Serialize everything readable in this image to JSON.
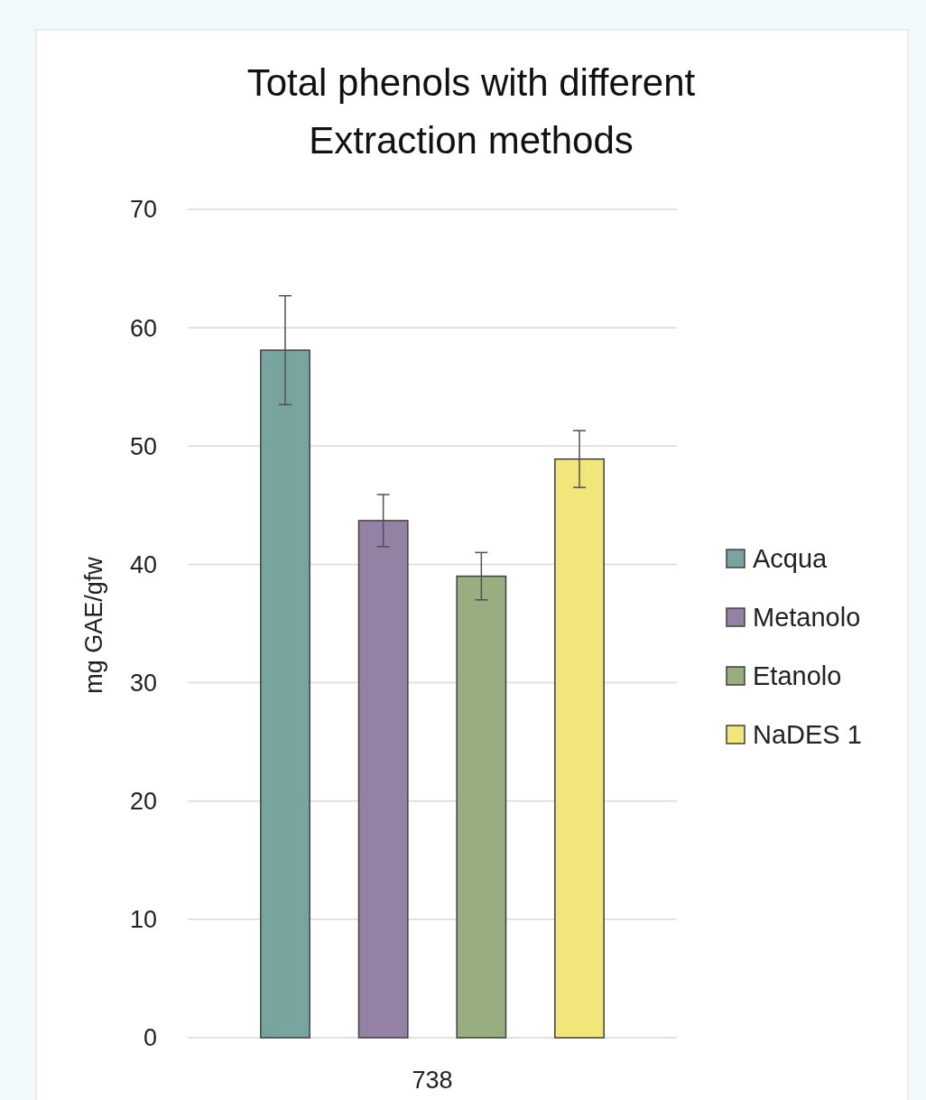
{
  "chart_data": {
    "type": "bar",
    "title": "Total phenols with different Extraction methods",
    "ylabel": "mg GAE/gfw",
    "categories": [
      "738"
    ],
    "series": [
      {
        "name": "Acqua",
        "color": "#78a4a0",
        "values": [
          58.1
        ],
        "errors": [
          4.6
        ]
      },
      {
        "name": "Metanolo",
        "color": "#9482a4",
        "values": [
          43.7
        ],
        "errors": [
          2.2
        ]
      },
      {
        "name": "Etanolo",
        "color": "#98ad80",
        "values": [
          39.0
        ],
        "errors": [
          2.0
        ]
      },
      {
        "name": "NaDES 1",
        "color": "#f0e67a",
        "values": [
          48.9
        ],
        "errors": [
          2.4
        ]
      }
    ],
    "ylim": [
      0,
      70
    ],
    "yticks": [
      0,
      10,
      20,
      30,
      40,
      50,
      60,
      70
    ],
    "grid": "y",
    "legend": "right"
  }
}
